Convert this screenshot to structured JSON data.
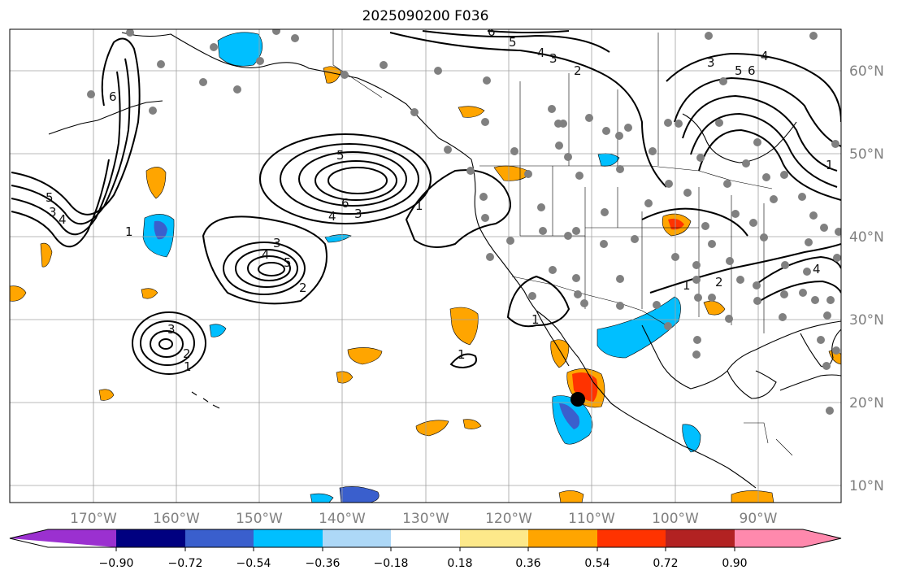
{
  "title": "2025090200 F036",
  "colors": {
    "frame": "#000000",
    "grid": "#a0a0a0",
    "coast": "#000000",
    "station": "#808080",
    "storm": "#000000",
    "contour": "#000000"
  },
  "lat_labels": [
    "60°N",
    "50°N",
    "40°N",
    "30°N",
    "20°N",
    "10°N"
  ],
  "lon_labels": [
    "170°W",
    "160°W",
    "150°W",
    "140°W",
    "130°W",
    "120°W",
    "110°W",
    "100°W",
    "90°W"
  ],
  "colorbar": {
    "ticks": [
      "−0.90",
      "−0.72",
      "−0.54",
      "−0.36",
      "−0.18",
      "0.18",
      "0.36",
      "0.54",
      "0.72",
      "0.90"
    ],
    "colors": [
      "#9b30d0",
      "#000080",
      "#3a5fcd",
      "#00bfff",
      "#add8f7",
      "#ffffff",
      "#fde98a",
      "#ffa500",
      "#ff3300",
      "#b22222",
      "#ff89ad"
    ]
  },
  "contour_labels": [
    "6",
    "5",
    "4",
    "3",
    "2",
    "1"
  ],
  "shading": {
    "positive_colors": [
      "#ffa500",
      "#ff3300"
    ],
    "negative_colors": [
      "#00bfff",
      "#3a5fcd"
    ]
  }
}
